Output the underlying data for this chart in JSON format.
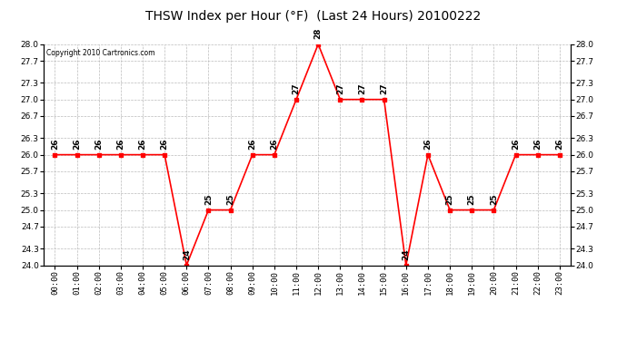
{
  "title": "THSW Index per Hour (°F)  (Last 24 Hours) 20100222",
  "copyright": "Copyright 2010 Cartronics.com",
  "hours": [
    "00:00",
    "01:00",
    "02:00",
    "03:00",
    "04:00",
    "05:00",
    "06:00",
    "07:00",
    "08:00",
    "09:00",
    "10:00",
    "11:00",
    "12:00",
    "13:00",
    "14:00",
    "15:00",
    "16:00",
    "17:00",
    "18:00",
    "19:00",
    "20:00",
    "21:00",
    "22:00",
    "23:00"
  ],
  "values": [
    26,
    26,
    26,
    26,
    26,
    26,
    24,
    25,
    25,
    26,
    26,
    27,
    28,
    27,
    27,
    27,
    24,
    26,
    25,
    25,
    25,
    26,
    26,
    26
  ],
  "ylim_min": 24.0,
  "ylim_max": 28.0,
  "yticks": [
    24.0,
    24.3,
    24.7,
    25.0,
    25.3,
    25.7,
    26.0,
    26.3,
    26.7,
    27.0,
    27.3,
    27.7,
    28.0
  ],
  "line_color": "red",
  "marker_color": "red",
  "bg_color": "white",
  "grid_color": "#bbbbbb",
  "title_fontsize": 10,
  "label_fontsize": 6.5,
  "annotation_fontsize": 6.5
}
